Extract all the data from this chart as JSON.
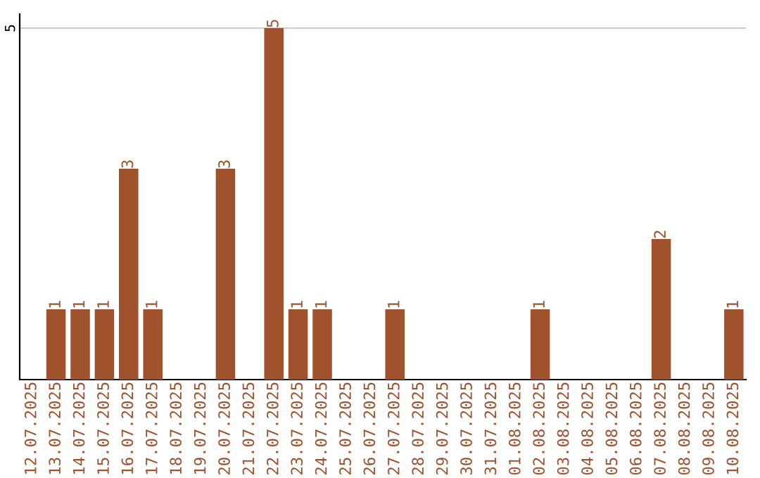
{
  "chart_data": {
    "type": "bar",
    "categories": [
      "12.07.2025",
      "13.07.2025",
      "14.07.2025",
      "15.07.2025",
      "16.07.2025",
      "17.07.2025",
      "18.07.2025",
      "19.07.2025",
      "20.07.2025",
      "21.07.2025",
      "22.07.2025",
      "23.07.2025",
      "24.07.2025",
      "25.07.2025",
      "26.07.2025",
      "27.07.2025",
      "28.07.2025",
      "29.07.2025",
      "30.07.2025",
      "31.07.2025",
      "01.08.2025",
      "02.08.2025",
      "03.08.2025",
      "04.08.2025",
      "05.08.2025",
      "06.08.2025",
      "07.08.2025",
      "08.08.2025",
      "09.08.2025",
      "10.08.2025"
    ],
    "values": [
      0,
      1,
      1,
      1,
      3,
      1,
      0,
      0,
      3,
      0,
      5,
      1,
      1,
      0,
      0,
      1,
      0,
      0,
      0,
      0,
      0,
      1,
      0,
      0,
      0,
      0,
      2,
      0,
      0,
      1
    ],
    "value_labels": [
      null,
      "1",
      "1",
      "1",
      "3",
      "1",
      null,
      null,
      "3",
      null,
      "5",
      "1",
      "1",
      null,
      null,
      "1",
      null,
      null,
      null,
      null,
      null,
      "1",
      null,
      null,
      null,
      null,
      "2",
      null,
      null,
      "1"
    ],
    "color": "#a0522d",
    "ylim": [
      0,
      5.2
    ],
    "yticks": [
      5
    ],
    "grid": "y",
    "legend": false
  }
}
